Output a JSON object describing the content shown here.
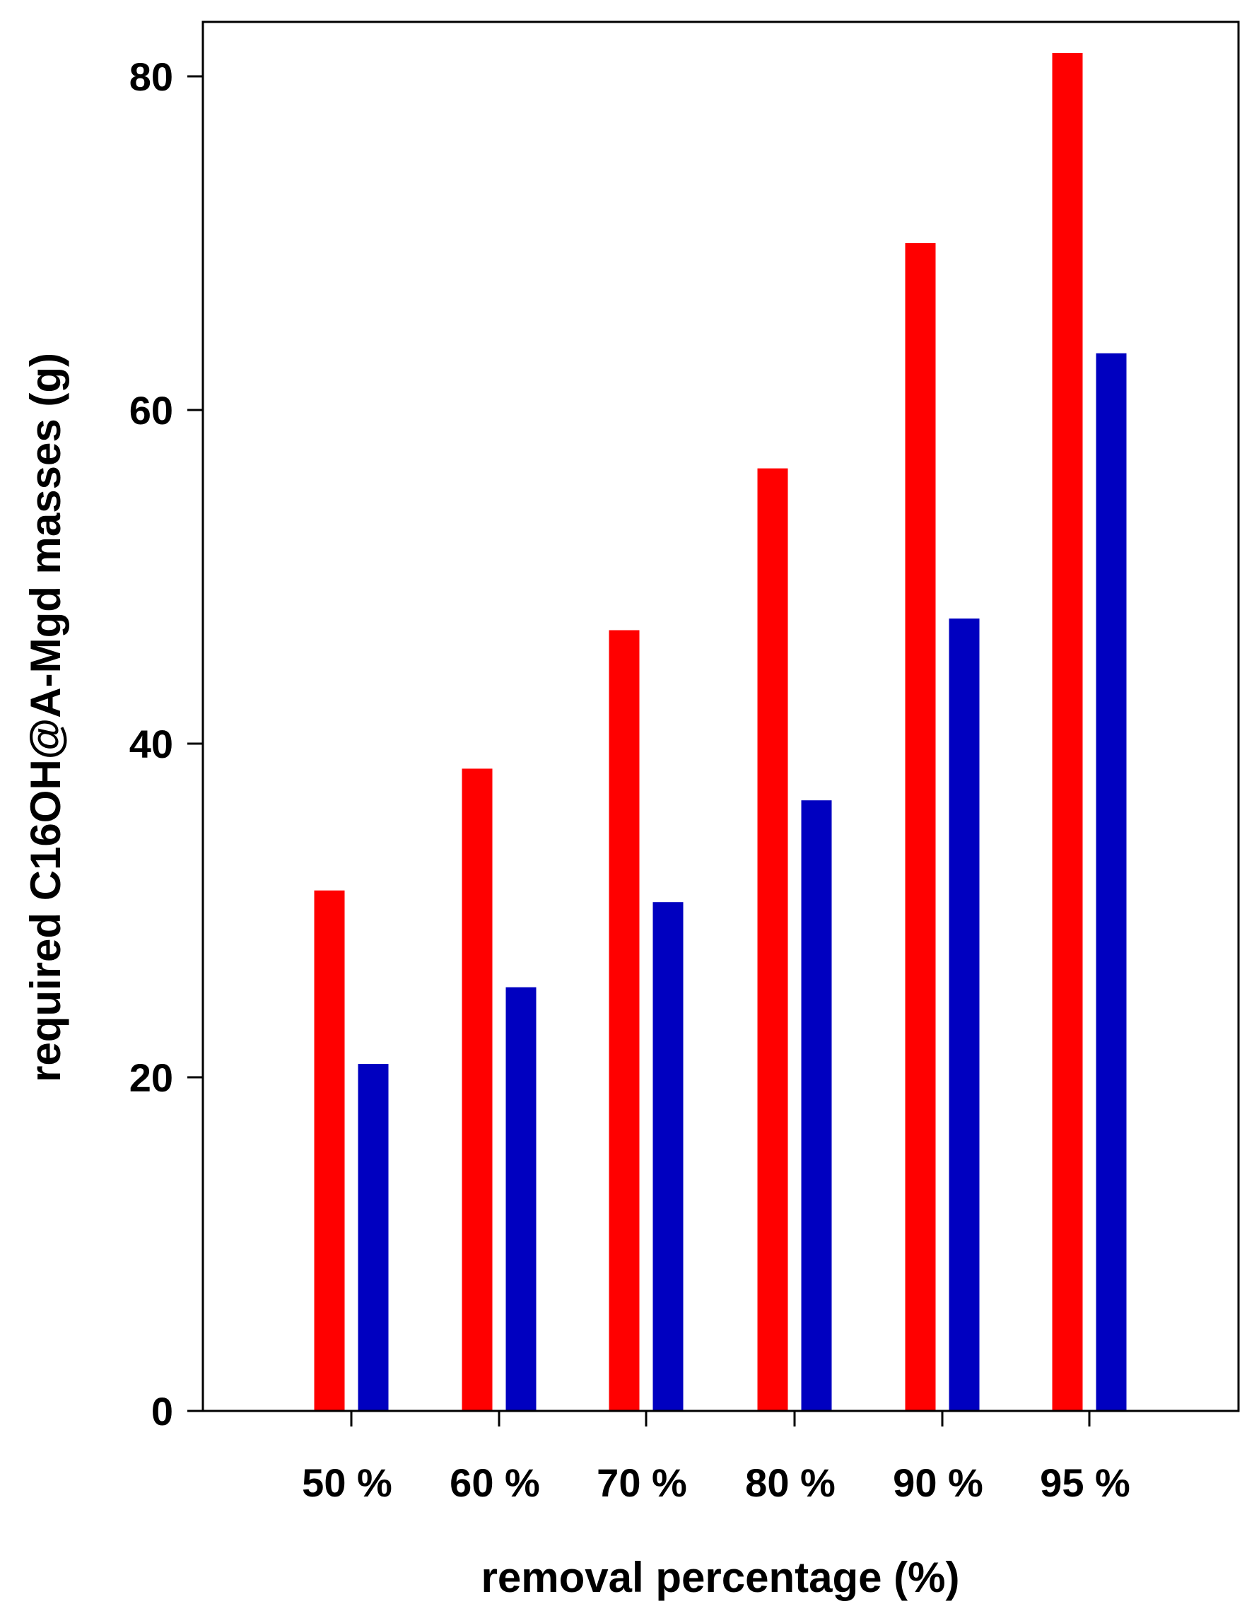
{
  "chart_data": {
    "type": "bar",
    "title": "",
    "xlabel": "removal percentage (%)",
    "ylabel": "required C16OH@A-Mgd masses (g)",
    "categories": [
      "50 %",
      "60 %",
      "70 %",
      "80 %",
      "90 %",
      "95 %"
    ],
    "series": [
      {
        "color": "#ff0000",
        "values": [
          31.2,
          38.5,
          46.8,
          56.5,
          70.0,
          81.4
        ]
      },
      {
        "color": "#0000c0",
        "values": [
          20.8,
          25.4,
          30.5,
          36.6,
          47.5,
          63.4
        ]
      }
    ],
    "yticks": [
      0,
      20,
      40,
      60,
      80
    ],
    "ytick_labels": [
      "0",
      "20",
      "40",
      "60",
      "80"
    ],
    "ylim": [
      0,
      83
    ],
    "grid": false,
    "legend": "none"
  }
}
